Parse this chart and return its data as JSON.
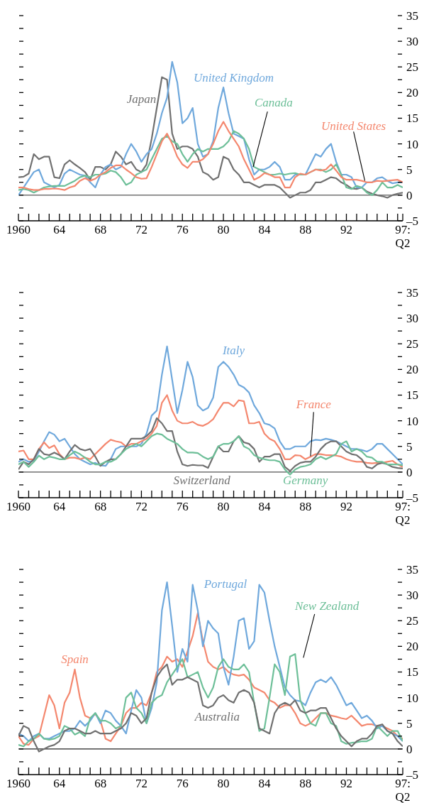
{
  "chart_data": [
    {
      "type": "line",
      "x": [
        1960,
        1960.5,
        1961,
        1961.5,
        1962,
        1962.5,
        1963,
        1963.5,
        1964,
        1964.5,
        1965,
        1965.5,
        1966,
        1966.5,
        1967,
        1967.5,
        1968,
        1968.5,
        1969,
        1969.5,
        1970,
        1970.5,
        1971,
        1971.5,
        1972,
        1972.5,
        1973,
        1973.5,
        1974,
        1974.5,
        1975,
        1975.5,
        1976,
        1976.5,
        1977,
        1977.5,
        1978,
        1978.5,
        1979,
        1979.5,
        1980,
        1980.5,
        1981,
        1981.5,
        1982,
        1982.5,
        1983,
        1983.5,
        1984,
        1984.5,
        1985,
        1985.5,
        1986,
        1986.5,
        1987,
        1987.5,
        1988,
        1988.5,
        1989,
        1989.5,
        1990,
        1990.5,
        1991,
        1991.5,
        1992,
        1992.5,
        1993,
        1993.5,
        1994,
        1994.5,
        1995,
        1995.5,
        1996,
        1996.5,
        1997,
        1997.5
      ],
      "xlim": [
        1960,
        1997.5
      ],
      "xticks": [
        {
          "value": 1960,
          "label": "1960"
        },
        {
          "value": 1961,
          "label": null
        },
        {
          "value": 1962,
          "label": null
        },
        {
          "value": 1963,
          "label": null
        },
        {
          "value": 1964,
          "label": "64"
        },
        {
          "value": 1965,
          "label": null
        },
        {
          "value": 1966,
          "label": null
        },
        {
          "value": 1967,
          "label": null
        },
        {
          "value": 1968,
          "label": "68"
        },
        {
          "value": 1969,
          "label": null
        },
        {
          "value": 1970,
          "label": null
        },
        {
          "value": 1971,
          "label": null
        },
        {
          "value": 1972,
          "label": "72"
        },
        {
          "value": 1973,
          "label": null
        },
        {
          "value": 1974,
          "label": null
        },
        {
          "value": 1975,
          "label": null
        },
        {
          "value": 1976,
          "label": "76"
        },
        {
          "value": 1977,
          "label": null
        },
        {
          "value": 1978,
          "label": null
        },
        {
          "value": 1979,
          "label": null
        },
        {
          "value": 1980,
          "label": "80"
        },
        {
          "value": 1981,
          "label": null
        },
        {
          "value": 1982,
          "label": null
        },
        {
          "value": 1983,
          "label": null
        },
        {
          "value": 1984,
          "label": "84"
        },
        {
          "value": 1985,
          "label": null
        },
        {
          "value": 1986,
          "label": null
        },
        {
          "value": 1987,
          "label": null
        },
        {
          "value": 1988,
          "label": "88"
        },
        {
          "value": 1989,
          "label": null
        },
        {
          "value": 1990,
          "label": null
        },
        {
          "value": 1991,
          "label": null
        },
        {
          "value": 1992,
          "label": "92"
        },
        {
          "value": 1993,
          "label": null
        },
        {
          "value": 1994,
          "label": null
        },
        {
          "value": 1995,
          "label": null
        },
        {
          "value": 1996,
          "label": null
        },
        {
          "value": 1997,
          "label": null
        },
        {
          "value": 1997.5,
          "label": "97:\nQ2"
        }
      ],
      "ylim": [
        -5,
        35
      ],
      "yticks": [
        {
          "value": -5,
          "label": "–5"
        },
        {
          "value": -2.5,
          "label": null
        },
        0,
        {
          "value": 2.5,
          "label": null
        },
        5,
        {
          "value": 7.5,
          "label": null
        },
        10,
        {
          "value": 12.5,
          "label": null
        },
        15,
        {
          "value": 17.5,
          "label": null
        },
        20,
        {
          "value": 22.5,
          "label": null
        },
        25,
        {
          "value": 27.5,
          "label": null
        },
        30,
        {
          "value": 32.5,
          "label": null
        },
        35
      ],
      "ref_lines": [
        {
          "axis": "y",
          "value": 0,
          "color": "#555555"
        }
      ],
      "series": [
        {
          "name": "Japan",
          "color": "#707070",
          "values": [
            3.5,
            3.6,
            4.2,
            8,
            7,
            7.5,
            7.5,
            3.5,
            3.3,
            6,
            6.8,
            6,
            5.3,
            4.5,
            3,
            5.5,
            5.5,
            5,
            6,
            8.5,
            7.5,
            6,
            6.5,
            5,
            4.5,
            6,
            11,
            17,
            23,
            22.5,
            12,
            9,
            9.5,
            9.5,
            9,
            7.5,
            4.5,
            4,
            3,
            3.5,
            7.5,
            7,
            5,
            4,
            2.5,
            2.5,
            2,
            1.5,
            2,
            2,
            2,
            1.5,
            0.5,
            -0.5,
            0,
            0.5,
            0.5,
            1,
            2.5,
            2.5,
            3,
            3.5,
            3.3,
            2.5,
            2,
            1.3,
            1.2,
            1.5,
            0.7,
            0.3,
            0,
            -0.2,
            -0.5,
            0,
            0.3,
            0.5
          ]
        },
        {
          "name": "United Kingdom",
          "color": "#6fa8dc",
          "values": [
            0,
            1.5,
            3,
            4.5,
            5,
            2.5,
            2,
            1.5,
            2,
            4.2,
            5,
            4.5,
            4,
            3.8,
            2.5,
            1.5,
            4,
            5.5,
            6,
            5,
            5.5,
            8,
            10,
            8.5,
            6.5,
            8,
            9,
            12,
            16,
            19,
            26,
            22,
            14,
            15,
            17,
            10,
            7.5,
            8,
            10.5,
            17,
            21,
            16,
            12,
            11.5,
            11,
            7,
            4,
            5,
            5,
            5.5,
            6.5,
            5.5,
            3,
            3,
            4,
            4,
            4,
            6,
            8,
            7.5,
            9,
            10,
            6.5,
            4,
            4,
            3.5,
            1.5,
            1.5,
            2.5,
            2.5,
            3.3,
            3.5,
            2.8,
            2.3,
            2.5,
            2.5
          ]
        },
        {
          "name": "Canada",
          "color": "#6dbf98",
          "values": [
            1,
            1.2,
            1,
            0.5,
            1,
            1.5,
            1.7,
            1.8,
            1.8,
            1.8,
            2.3,
            2.8,
            3.5,
            3.8,
            3.5,
            4,
            4,
            4.2,
            4.8,
            4.5,
            3.5,
            2,
            2.5,
            4,
            4.5,
            5,
            7,
            9,
            11,
            11.5,
            10.5,
            10,
            8,
            6.5,
            8,
            9,
            8.5,
            9,
            9,
            9,
            9.5,
            10.5,
            12.5,
            12,
            11,
            9,
            5.5,
            5,
            4.5,
            4,
            4,
            4.2,
            4,
            4.2,
            4.3,
            4,
            4,
            4.5,
            5,
            5,
            4.5,
            5,
            6,
            4,
            1.5,
            1.2,
            1.8,
            1.5,
            0.5,
            0,
            1,
            2.5,
            1.5,
            1.5,
            2,
            1.5
          ]
        },
        {
          "name": "United States",
          "color": "#f4876e",
          "values": [
            1.5,
            1.5,
            1.2,
            1,
            1,
            1.2,
            1.2,
            1.3,
            1.2,
            1,
            1.5,
            1.8,
            2.8,
            3.3,
            2.8,
            3.2,
            4,
            4.5,
            5.3,
            5.8,
            5.8,
            5,
            4.3,
            3.5,
            3.2,
            3.3,
            5.5,
            8,
            10.5,
            12,
            10,
            7.5,
            6,
            5.3,
            6.5,
            6.5,
            7,
            8,
            10,
            12.5,
            14.3,
            12.5,
            11,
            9.5,
            7,
            5,
            3,
            3.5,
            4.3,
            4,
            3.5,
            3.5,
            1.5,
            1.5,
            3.5,
            4.2,
            4,
            4.5,
            5,
            4.8,
            5,
            6,
            4.8,
            3.5,
            3,
            3,
            3,
            2.8,
            2.5,
            2.5,
            2.8,
            2.7,
            2.8,
            2.9,
            3,
            2.5
          ]
        }
      ]
    },
    {
      "type": "line",
      "x": [
        1960,
        1960.5,
        1961,
        1961.5,
        1962,
        1962.5,
        1963,
        1963.5,
        1964,
        1964.5,
        1965,
        1965.5,
        1966,
        1966.5,
        1967,
        1967.5,
        1968,
        1968.5,
        1969,
        1969.5,
        1970,
        1970.5,
        1971,
        1971.5,
        1972,
        1972.5,
        1973,
        1973.5,
        1974,
        1974.5,
        1975,
        1975.5,
        1976,
        1976.5,
        1977,
        1977.5,
        1978,
        1978.5,
        1979,
        1979.5,
        1980,
        1980.5,
        1981,
        1981.5,
        1982,
        1982.5,
        1983,
        1983.5,
        1984,
        1984.5,
        1985,
        1985.5,
        1986,
        1986.5,
        1987,
        1987.5,
        1988,
        1988.5,
        1989,
        1989.5,
        1990,
        1990.5,
        1991,
        1991.5,
        1992,
        1992.5,
        1993,
        1993.5,
        1994,
        1994.5,
        1995,
        1995.5,
        1996,
        1996.5,
        1997,
        1997.5
      ],
      "xlim": [
        1960,
        1997.5
      ],
      "xticks": [
        {
          "value": 1960,
          "label": "1960"
        },
        {
          "value": 1961,
          "label": null
        },
        {
          "value": 1962,
          "label": null
        },
        {
          "value": 1963,
          "label": null
        },
        {
          "value": 1964,
          "label": "64"
        },
        {
          "value": 1965,
          "label": null
        },
        {
          "value": 1966,
          "label": null
        },
        {
          "value": 1967,
          "label": null
        },
        {
          "value": 1968,
          "label": "68"
        },
        {
          "value": 1969,
          "label": null
        },
        {
          "value": 1970,
          "label": null
        },
        {
          "value": 1971,
          "label": null
        },
        {
          "value": 1972,
          "label": "72"
        },
        {
          "value": 1973,
          "label": null
        },
        {
          "value": 1974,
          "label": null
        },
        {
          "value": 1975,
          "label": null
        },
        {
          "value": 1976,
          "label": "76"
        },
        {
          "value": 1977,
          "label": null
        },
        {
          "value": 1978,
          "label": null
        },
        {
          "value": 1979,
          "label": null
        },
        {
          "value": 1980,
          "label": "80"
        },
        {
          "value": 1981,
          "label": null
        },
        {
          "value": 1982,
          "label": null
        },
        {
          "value": 1983,
          "label": null
        },
        {
          "value": 1984,
          "label": "84"
        },
        {
          "value": 1985,
          "label": null
        },
        {
          "value": 1986,
          "label": null
        },
        {
          "value": 1987,
          "label": null
        },
        {
          "value": 1988,
          "label": "88"
        },
        {
          "value": 1989,
          "label": null
        },
        {
          "value": 1990,
          "label": null
        },
        {
          "value": 1991,
          "label": null
        },
        {
          "value": 1992,
          "label": "92"
        },
        {
          "value": 1993,
          "label": null
        },
        {
          "value": 1994,
          "label": null
        },
        {
          "value": 1995,
          "label": null
        },
        {
          "value": 1996,
          "label": null
        },
        {
          "value": 1997,
          "label": null
        },
        {
          "value": 1997.5,
          "label": "97:\nQ2"
        }
      ],
      "ylim": [
        -5,
        35
      ],
      "yticks": [
        {
          "value": -5,
          "label": "–5"
        },
        {
          "value": -2.5,
          "label": null
        },
        0,
        {
          "value": 2.5,
          "label": null
        },
        5,
        {
          "value": 7.5,
          "label": null
        },
        10,
        {
          "value": 12.5,
          "label": null
        },
        15,
        {
          "value": 17.5,
          "label": null
        },
        20,
        {
          "value": 22.5,
          "label": null
        },
        25,
        {
          "value": 27.5,
          "label": null
        },
        30,
        {
          "value": 32.5,
          "label": null
        },
        35
      ],
      "ref_lines": [
        {
          "axis": "y",
          "value": 0,
          "color": "#555555"
        }
      ],
      "series": [
        {
          "name": "Italy",
          "color": "#6fa8dc",
          "values": [
            2,
            2.5,
            2,
            2.2,
            4,
            6,
            7.8,
            7.3,
            6,
            6.5,
            5,
            3.5,
            2.5,
            2,
            1.5,
            1.8,
            1.3,
            1.2,
            2.5,
            4.5,
            5,
            5,
            5,
            5,
            5.5,
            7.5,
            11,
            12,
            19,
            24.5,
            18,
            11.5,
            16,
            21.5,
            18.5,
            13,
            12,
            12.5,
            14.5,
            20.5,
            21.5,
            20.5,
            19,
            17,
            16.5,
            15.5,
            13,
            11.5,
            9.5,
            9.2,
            8.5,
            6,
            4.5,
            4.5,
            5,
            5,
            5,
            6,
            6.3,
            6.2,
            6.5,
            6.3,
            6,
            5.5,
            5,
            4.5,
            4.5,
            4.3,
            4,
            4.5,
            5.5,
            5.5,
            4.5,
            3.5,
            2.5,
            1.5
          ]
        },
        {
          "name": "France",
          "color": "#f4876e",
          "values": [
            4,
            4.2,
            2.5,
            2.5,
            4.5,
            5.8,
            4.7,
            5.2,
            3.5,
            2.5,
            2.8,
            2.8,
            2.5,
            2.8,
            2.5,
            3.5,
            4.5,
            5.5,
            6.3,
            6,
            5.8,
            5,
            5.5,
            5.5,
            6,
            6.5,
            7.5,
            9,
            13.5,
            15,
            12,
            10,
            9.5,
            9.5,
            9.8,
            9.2,
            9,
            9.5,
            10.3,
            12,
            13.5,
            13.5,
            12.8,
            14,
            13.8,
            9.5,
            9.5,
            9.8,
            7.5,
            6.5,
            6,
            4.5,
            2.5,
            2.5,
            3.3,
            3.2,
            2.5,
            3,
            3.5,
            3.5,
            3.3,
            3.3,
            3.2,
            3,
            2.5,
            2.2,
            2,
            2,
            1.8,
            1.7,
            1.8,
            1.8,
            2,
            2.2,
            1.5,
            1
          ]
        },
        {
          "name": "Switzerland",
          "color": "#707070",
          "values": [
            0.5,
            2,
            1.5,
            2.5,
            4.5,
            3.5,
            3.3,
            3.8,
            3.3,
            2.5,
            4,
            5.3,
            4.5,
            4.2,
            4.5,
            3,
            1.2,
            2,
            2.5,
            2.5,
            3.5,
            5,
            6.5,
            6.5,
            6.5,
            7,
            8,
            10.5,
            9.5,
            8,
            8,
            4,
            1.5,
            1.2,
            1.4,
            1.3,
            1.3,
            0.8,
            3,
            5,
            4,
            4,
            6,
            7,
            5.8,
            5.5,
            4.5,
            2,
            3,
            3,
            3.5,
            3.5,
            1,
            0.2,
            1.2,
            1.8,
            2,
            2,
            3,
            4.5,
            5.5,
            6,
            6,
            5,
            4,
            3.5,
            3.3,
            2.5,
            1,
            0.7,
            1.5,
            1.8,
            1.5,
            1,
            0.8,
            0.7
          ]
        },
        {
          "name": "Germany",
          "color": "#6dbf98",
          "values": [
            1.5,
            2,
            1,
            2,
            3.2,
            2.5,
            3,
            2.8,
            2.5,
            2.5,
            3.3,
            4,
            3.5,
            2.8,
            2,
            1.5,
            1.5,
            2,
            2,
            2.5,
            3.5,
            4.5,
            5,
            5.5,
            5,
            6,
            7,
            7.5,
            7.3,
            6.5,
            6,
            5.5,
            4.5,
            3.8,
            3.8,
            3.7,
            3,
            2.5,
            3,
            5,
            5.5,
            5.5,
            6,
            7,
            5,
            4.5,
            3.3,
            2.8,
            2.5,
            2.3,
            2.3,
            2,
            0.5,
            -0.5,
            0.5,
            1,
            1.2,
            1.5,
            2.5,
            3,
            2.5,
            3,
            3.5,
            5.5,
            6,
            4,
            4.5,
            4,
            3,
            2.8,
            2,
            2,
            1.5,
            1.5,
            1.5,
            1.3
          ]
        }
      ]
    },
    {
      "type": "line",
      "x": [
        1960,
        1960.5,
        1961,
        1961.5,
        1962,
        1962.5,
        1963,
        1963.5,
        1964,
        1964.5,
        1965,
        1965.5,
        1966,
        1966.5,
        1967,
        1967.5,
        1968,
        1968.5,
        1969,
        1969.5,
        1970,
        1970.5,
        1971,
        1971.5,
        1972,
        1972.5,
        1973,
        1973.5,
        1974,
        1974.5,
        1975,
        1975.5,
        1976,
        1976.5,
        1977,
        1977.5,
        1978,
        1978.5,
        1979,
        1979.5,
        1980,
        1980.5,
        1981,
        1981.5,
        1982,
        1982.5,
        1983,
        1983.5,
        1984,
        1984.5,
        1985,
        1985.5,
        1986,
        1986.5,
        1987,
        1987.5,
        1988,
        1988.5,
        1989,
        1989.5,
        1990,
        1990.5,
        1991,
        1991.5,
        1992,
        1992.5,
        1993,
        1993.5,
        1994,
        1994.5,
        1995,
        1995.5,
        1996,
        1996.5,
        1997,
        1997.5
      ],
      "xlim": [
        1960,
        1997.5
      ],
      "xticks": [
        {
          "value": 1960,
          "label": "1960"
        },
        {
          "value": 1961,
          "label": null
        },
        {
          "value": 1962,
          "label": null
        },
        {
          "value": 1963,
          "label": null
        },
        {
          "value": 1964,
          "label": "64"
        },
        {
          "value": 1965,
          "label": null
        },
        {
          "value": 1966,
          "label": null
        },
        {
          "value": 1967,
          "label": null
        },
        {
          "value": 1968,
          "label": "68"
        },
        {
          "value": 1969,
          "label": null
        },
        {
          "value": 1970,
          "label": null
        },
        {
          "value": 1971,
          "label": null
        },
        {
          "value": 1972,
          "label": "72"
        },
        {
          "value": 1973,
          "label": null
        },
        {
          "value": 1974,
          "label": null
        },
        {
          "value": 1975,
          "label": null
        },
        {
          "value": 1976,
          "label": "76"
        },
        {
          "value": 1977,
          "label": null
        },
        {
          "value": 1978,
          "label": null
        },
        {
          "value": 1979,
          "label": null
        },
        {
          "value": 1980,
          "label": "80"
        },
        {
          "value": 1981,
          "label": null
        },
        {
          "value": 1982,
          "label": null
        },
        {
          "value": 1983,
          "label": null
        },
        {
          "value": 1984,
          "label": "84"
        },
        {
          "value": 1985,
          "label": null
        },
        {
          "value": 1986,
          "label": null
        },
        {
          "value": 1987,
          "label": null
        },
        {
          "value": 1988,
          "label": "88"
        },
        {
          "value": 1989,
          "label": null
        },
        {
          "value": 1990,
          "label": null
        },
        {
          "value": 1991,
          "label": null
        },
        {
          "value": 1992,
          "label": "92"
        },
        {
          "value": 1993,
          "label": null
        },
        {
          "value": 1994,
          "label": null
        },
        {
          "value": 1995,
          "label": null
        },
        {
          "value": 1996,
          "label": null
        },
        {
          "value": 1997,
          "label": null
        },
        {
          "value": 1997.5,
          "label": "97:\nQ2"
        }
      ],
      "ylim": [
        -5,
        35
      ],
      "yticks": [
        {
          "value": -5,
          "label": "–5"
        },
        {
          "value": -2.5,
          "label": null
        },
        0,
        {
          "value": 2.5,
          "label": null
        },
        5,
        {
          "value": 7.5,
          "label": null
        },
        10,
        {
          "value": 12.5,
          "label": null
        },
        15,
        {
          "value": 17.5,
          "label": null
        },
        20,
        {
          "value": 22.5,
          "label": null
        },
        25,
        {
          "value": 27.5,
          "label": null
        },
        30,
        {
          "value": 32.5,
          "label": null
        },
        35
      ],
      "ref_lines": [
        {
          "axis": "y",
          "value": 0,
          "color": "#222222"
        }
      ],
      "series": [
        {
          "name": "Spain",
          "color": "#f4876e",
          "values": [
            2.5,
            1,
            0.8,
            2,
            2.5,
            6.5,
            10.5,
            8.5,
            4,
            9,
            11,
            15.5,
            10,
            6.5,
            6,
            6.8,
            5.5,
            2,
            1.5,
            3,
            4.5,
            7,
            8,
            8,
            9,
            8.5,
            11,
            15,
            16,
            18,
            17,
            17.5,
            16,
            19,
            22,
            26.5,
            21,
            17,
            16,
            15.5,
            16,
            15,
            14.5,
            14.3,
            14.5,
            13.5,
            12,
            11.5,
            11,
            9.5,
            9,
            8,
            8.5,
            8.5,
            7,
            5,
            4.5,
            5,
            6,
            7,
            7,
            6.5,
            6.3,
            6,
            5.8,
            6.5,
            5.5,
            4.5,
            4.8,
            4.8,
            4.5,
            4.5,
            4,
            3.5,
            2.5,
            2
          ]
        },
        {
          "name": "Portugal",
          "color": "#6fa8dc",
          "values": [
            3,
            2.5,
            1.5,
            2.5,
            3,
            2,
            2,
            2.5,
            3,
            3.5,
            3.5,
            4,
            5.5,
            4.5,
            5.5,
            7,
            5,
            7.5,
            7,
            5.5,
            4.5,
            3,
            7.5,
            11.5,
            10,
            5,
            8,
            13,
            27,
            32.5,
            24,
            15,
            19.5,
            17,
            32,
            27,
            20,
            25,
            23.5,
            22.5,
            16,
            12.5,
            18,
            25,
            25.5,
            19.5,
            21,
            32,
            30.5,
            25,
            20,
            16,
            12,
            10.5,
            9.5,
            9.3,
            8.5,
            11,
            13,
            13.5,
            13,
            14,
            12.5,
            10.5,
            8.5,
            9,
            7.5,
            6,
            6.5,
            5.5,
            4,
            4.5,
            3.5,
            3,
            2.5,
            1.5
          ]
        },
        {
          "name": "New Zealand",
          "color": "#6dbf98",
          "values": [
            0.8,
            0.5,
            1.5,
            2,
            3,
            2,
            1.8,
            2,
            2.5,
            4.5,
            4,
            2.8,
            3.3,
            2.5,
            6,
            7,
            5.5,
            5.5,
            5,
            4,
            4.5,
            10,
            11,
            8,
            7,
            5,
            9,
            10,
            10.5,
            13,
            14.5,
            16,
            17.5,
            14,
            14.5,
            15,
            12,
            10,
            12,
            16,
            17.5,
            16,
            15.5,
            15.5,
            16.5,
            15,
            9,
            3.5,
            4,
            10,
            16.5,
            15,
            10.5,
            18,
            18.5,
            9.5,
            7,
            5,
            4.5,
            7,
            7,
            5,
            4.5,
            1.5,
            1,
            1.2,
            1.3,
            1.5,
            1.5,
            2,
            4.5,
            3.5,
            2.5,
            3.5,
            3.5,
            1.5
          ]
        },
        {
          "name": "Australia",
          "color": "#707070",
          "values": [
            2.5,
            4.5,
            4,
            1.5,
            -0.5,
            0,
            0.5,
            0.8,
            1.5,
            3.5,
            4,
            4,
            3.5,
            3,
            3,
            3.5,
            3,
            3,
            3,
            3.5,
            4,
            5,
            7,
            6.5,
            5,
            6,
            11,
            14,
            15.5,
            16.5,
            12.5,
            13.5,
            13.5,
            14,
            13.5,
            13,
            8.5,
            8,
            8.5,
            10,
            10.5,
            9.5,
            9,
            11,
            11.5,
            11,
            9,
            4,
            3.5,
            3,
            7,
            8.5,
            9,
            8.5,
            9.5,
            7.5,
            7,
            7.5,
            7.5,
            8,
            8,
            6,
            4,
            2.5,
            1.5,
            0.5,
            1.5,
            2,
            2,
            3,
            4.5,
            4.8,
            3.5,
            3,
            1.5,
            0.5
          ]
        }
      ]
    }
  ]
}
